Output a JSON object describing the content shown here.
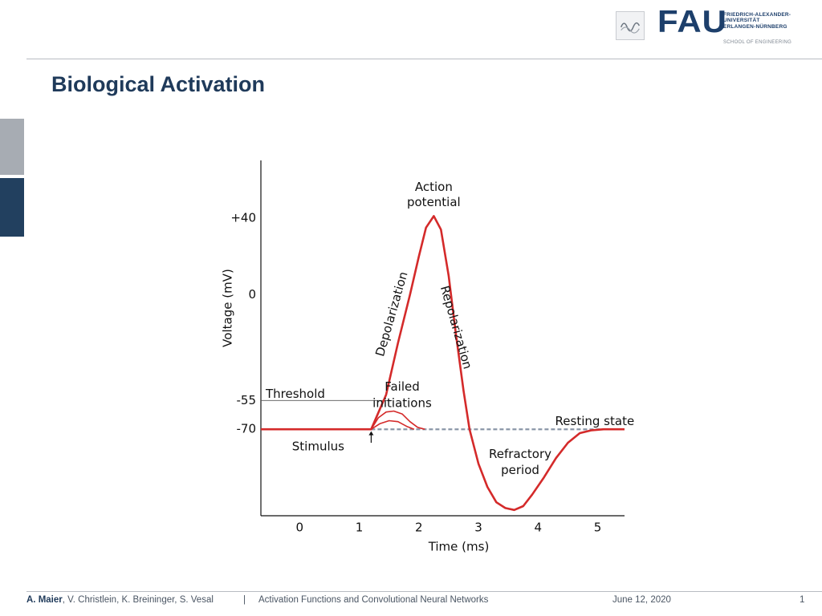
{
  "slide": {
    "title": "Biological Activation",
    "page_number": "1"
  },
  "logo": {
    "wordmark": "FAU",
    "university_lines": [
      "FRIEDRICH-ALEXANDER-",
      "UNIVERSITÄT",
      "ERLANGEN-NÜRNBERG"
    ],
    "school": "SCHOOL OF ENGINEERING"
  },
  "footer": {
    "lead_author": "A. Maier",
    "coauthors": ", V. Christlein, K. Breininger, S. Vesal",
    "separator": "|",
    "course": "Activation Functions and Convolutional Neural Networks",
    "date": "June 12, 2020"
  },
  "chart_data": {
    "type": "line",
    "xlabel": "Time (ms)",
    "ylabel": "Voltage (mV)",
    "x_ticks": [
      0,
      1,
      2,
      3,
      4,
      5
    ],
    "y_ticks": [
      {
        "value": 40,
        "label": "+40"
      },
      {
        "value": 0,
        "label": "0"
      },
      {
        "value": -55,
        "label": "-55"
      },
      {
        "value": -70,
        "label": "-70"
      }
    ],
    "xlim": [
      -0.65,
      5.45
    ],
    "ylim": [
      -115,
      70
    ],
    "line_color": "#d42a2a",
    "dashed_color": "#8a96a8",
    "threshold": {
      "value": -55,
      "label": "Threshold"
    },
    "series": [
      {
        "role": "action-potential",
        "x": [
          -0.65,
          1.2,
          1.45,
          1.65,
          1.85,
          2.0,
          2.12,
          2.25,
          2.37,
          2.5,
          2.62,
          2.75,
          2.85,
          3.0,
          3.15,
          3.3,
          3.45,
          3.6,
          3.75,
          3.9,
          4.1,
          4.3,
          4.5,
          4.7,
          4.9,
          5.1,
          5.3,
          5.45
        ],
        "y": [
          -70,
          -70,
          -52,
          -25,
          0,
          20,
          35,
          41,
          34,
          10,
          -20,
          -50,
          -70,
          -88,
          -100,
          -108,
          -111,
          -112,
          -110,
          -104,
          -95,
          -85,
          -77,
          -72,
          -70.5,
          -70,
          -70,
          -70
        ]
      },
      {
        "role": "failed-initiation-1",
        "x": [
          1.2,
          1.32,
          1.45,
          1.58,
          1.72,
          1.85,
          1.98,
          2.1
        ],
        "y": [
          -70,
          -64,
          -61,
          -60.5,
          -62,
          -66,
          -69,
          -70
        ]
      },
      {
        "role": "failed-initiation-2",
        "x": [
          1.2,
          1.35,
          1.5,
          1.65,
          1.8,
          1.92
        ],
        "y": [
          -70,
          -67,
          -65.5,
          -66,
          -68.5,
          -70
        ]
      }
    ],
    "resting_dashed": {
      "x_start": 1.2,
      "x_end": 5.3,
      "y": -70
    },
    "annotations": [
      {
        "text": "Action",
        "x": 2.25,
        "y": 56
      },
      {
        "text": "potential",
        "x": 2.25,
        "y": 48
      },
      {
        "text": "Depolarization",
        "x": 1.55,
        "y": -10,
        "rotate": -74
      },
      {
        "text": "Repolarization",
        "x": 2.62,
        "y": -17,
        "rotate": 74
      },
      {
        "text": "Failed",
        "x": 1.72,
        "y": -48
      },
      {
        "text": "initiations",
        "x": 1.72,
        "y": -56.5
      },
      {
        "text": "Resting state",
        "x": 4.95,
        "y": -66
      },
      {
        "text": "Stimulus",
        "x": 0.75,
        "y": -79
      },
      {
        "text": "Refractory",
        "x": 3.7,
        "y": -83
      },
      {
        "text": "period",
        "x": 3.7,
        "y": -91.5
      }
    ],
    "stimulus_arrow": {
      "x": 1.2,
      "y_from": -77,
      "y_to": -71
    }
  }
}
